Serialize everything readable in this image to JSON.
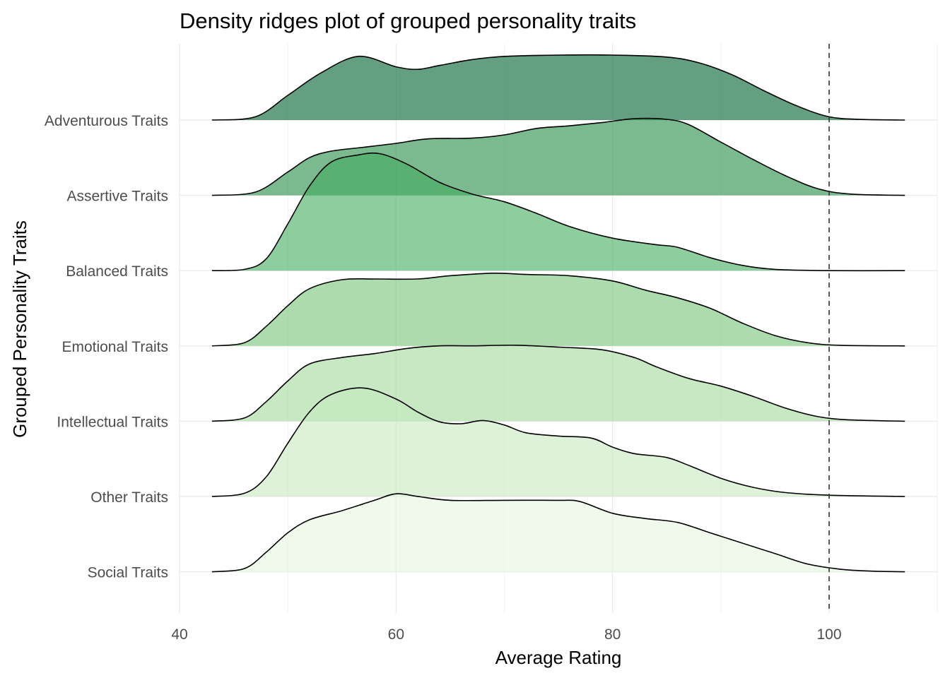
{
  "chart_data": {
    "type": "density_ridges",
    "title": "Density ridges plot of grouped personality traits",
    "xlabel": "Average Rating",
    "ylabel": "Grouped Personality Traits",
    "xlim": [
      40,
      110
    ],
    "x_ticks": [
      40,
      60,
      80,
      100
    ],
    "x_tick_labels": [
      "40",
      "60",
      "80",
      "100"
    ],
    "reference_line": {
      "x": 100,
      "style": "dashed"
    },
    "grid": true,
    "categories": [
      "Adventurous Traits",
      "Assertive Traits",
      "Balanced Traits",
      "Emotional Traits",
      "Intellectual Traits",
      "Other Traits",
      "Social Traits"
    ],
    "series": [
      {
        "name": "Adventurous Traits",
        "color": "#2a7a50",
        "opacity": 0.72,
        "points": [
          [
            43,
            0
          ],
          [
            47,
            0.05
          ],
          [
            50,
            0.38
          ],
          [
            53,
            0.72
          ],
          [
            56.5,
            0.98
          ],
          [
            60,
            0.82
          ],
          [
            62,
            0.78
          ],
          [
            64,
            0.84
          ],
          [
            67,
            0.93
          ],
          [
            70,
            0.98
          ],
          [
            75,
            1.0
          ],
          [
            80,
            1.0
          ],
          [
            85,
            0.97
          ],
          [
            88,
            0.88
          ],
          [
            91,
            0.7
          ],
          [
            94,
            0.45
          ],
          [
            97,
            0.22
          ],
          [
            100,
            0.05
          ],
          [
            103,
            0.01
          ],
          [
            107,
            0
          ]
        ]
      },
      {
        "name": "Assertive Traits",
        "color": "#238b45",
        "opacity": 0.6,
        "points": [
          [
            43,
            0
          ],
          [
            47,
            0.05
          ],
          [
            50,
            0.36
          ],
          [
            52,
            0.58
          ],
          [
            54,
            0.68
          ],
          [
            57,
            0.74
          ],
          [
            60,
            0.8
          ],
          [
            63,
            0.87
          ],
          [
            67,
            0.88
          ],
          [
            70,
            0.93
          ],
          [
            73,
            1.03
          ],
          [
            76,
            1.07
          ],
          [
            79,
            1.12
          ],
          [
            82,
            1.18
          ],
          [
            85,
            1.17
          ],
          [
            87,
            1.09
          ],
          [
            90,
            0.82
          ],
          [
            93,
            0.55
          ],
          [
            96,
            0.3
          ],
          [
            99,
            0.1
          ],
          [
            102,
            0.02
          ],
          [
            107,
            0
          ]
        ]
      },
      {
        "name": "Balanced Traits",
        "color": "#41ab5d",
        "opacity": 0.6,
        "points": [
          [
            43,
            0
          ],
          [
            46,
            0.02
          ],
          [
            48,
            0.18
          ],
          [
            50,
            0.72
          ],
          [
            52,
            1.3
          ],
          [
            54,
            1.67
          ],
          [
            56.5,
            1.78
          ],
          [
            58.5,
            1.8
          ],
          [
            61,
            1.64
          ],
          [
            64,
            1.36
          ],
          [
            67,
            1.18
          ],
          [
            70,
            1.06
          ],
          [
            73,
            0.88
          ],
          [
            76,
            0.68
          ],
          [
            80,
            0.5
          ],
          [
            84,
            0.4
          ],
          [
            86,
            0.36
          ],
          [
            89,
            0.2
          ],
          [
            92,
            0.08
          ],
          [
            95,
            0.02
          ],
          [
            100,
            0
          ],
          [
            107,
            0
          ]
        ]
      },
      {
        "name": "Emotional Traits",
        "color": "#74c476",
        "opacity": 0.6,
        "points": [
          [
            43,
            0
          ],
          [
            46,
            0.05
          ],
          [
            48,
            0.3
          ],
          [
            50,
            0.62
          ],
          [
            52,
            0.88
          ],
          [
            55,
            1.02
          ],
          [
            58,
            1.03
          ],
          [
            62,
            1.03
          ],
          [
            65,
            1.08
          ],
          [
            69,
            1.12
          ],
          [
            72,
            1.1
          ],
          [
            76,
            1.08
          ],
          [
            80,
            1.0
          ],
          [
            83,
            0.86
          ],
          [
            86,
            0.74
          ],
          [
            89,
            0.58
          ],
          [
            92,
            0.35
          ],
          [
            95,
            0.16
          ],
          [
            98,
            0.05
          ],
          [
            101,
            0.01
          ],
          [
            107,
            0
          ]
        ]
      },
      {
        "name": "Intellectual Traits",
        "color": "#a1d99b",
        "opacity": 0.6,
        "points": [
          [
            43,
            0
          ],
          [
            46,
            0.05
          ],
          [
            48,
            0.3
          ],
          [
            50,
            0.62
          ],
          [
            52,
            0.88
          ],
          [
            55,
            0.98
          ],
          [
            58,
            1.04
          ],
          [
            61,
            1.12
          ],
          [
            64,
            1.16
          ],
          [
            67,
            1.16
          ],
          [
            71,
            1.17
          ],
          [
            75,
            1.14
          ],
          [
            79,
            1.1
          ],
          [
            82,
            0.98
          ],
          [
            84,
            0.84
          ],
          [
            87,
            0.66
          ],
          [
            90,
            0.54
          ],
          [
            93,
            0.38
          ],
          [
            96,
            0.2
          ],
          [
            99,
            0.07
          ],
          [
            102,
            0.02
          ],
          [
            107,
            0
          ]
        ]
      },
      {
        "name": "Other Traits",
        "color": "#c7e9c0",
        "opacity": 0.6,
        "points": [
          [
            43,
            0
          ],
          [
            46,
            0.05
          ],
          [
            48,
            0.3
          ],
          [
            50,
            0.82
          ],
          [
            52,
            1.3
          ],
          [
            54,
            1.57
          ],
          [
            57,
            1.67
          ],
          [
            60,
            1.5
          ],
          [
            62,
            1.3
          ],
          [
            64,
            1.15
          ],
          [
            66,
            1.12
          ],
          [
            68,
            1.17
          ],
          [
            70,
            1.1
          ],
          [
            72,
            0.98
          ],
          [
            75,
            0.93
          ],
          [
            78,
            0.9
          ],
          [
            80,
            0.76
          ],
          [
            82,
            0.66
          ],
          [
            85,
            0.6
          ],
          [
            87,
            0.48
          ],
          [
            90,
            0.28
          ],
          [
            93,
            0.14
          ],
          [
            96,
            0.06
          ],
          [
            100,
            0.02
          ],
          [
            107,
            0
          ]
        ]
      },
      {
        "name": "Social Traits",
        "color": "#e5f5e0",
        "opacity": 0.6,
        "points": [
          [
            43,
            0
          ],
          [
            46,
            0.05
          ],
          [
            48,
            0.3
          ],
          [
            50,
            0.6
          ],
          [
            52,
            0.8
          ],
          [
            55,
            0.94
          ],
          [
            58,
            1.1
          ],
          [
            60,
            1.2
          ],
          [
            62,
            1.16
          ],
          [
            65,
            1.1
          ],
          [
            70,
            1.1
          ],
          [
            75,
            1.1
          ],
          [
            77,
            1.08
          ],
          [
            80,
            0.9
          ],
          [
            83,
            0.82
          ],
          [
            86,
            0.76
          ],
          [
            89,
            0.6
          ],
          [
            92,
            0.44
          ],
          [
            95,
            0.28
          ],
          [
            98,
            0.12
          ],
          [
            101,
            0.04
          ],
          [
            104,
            0.01
          ],
          [
            107,
            0
          ]
        ]
      }
    ]
  }
}
